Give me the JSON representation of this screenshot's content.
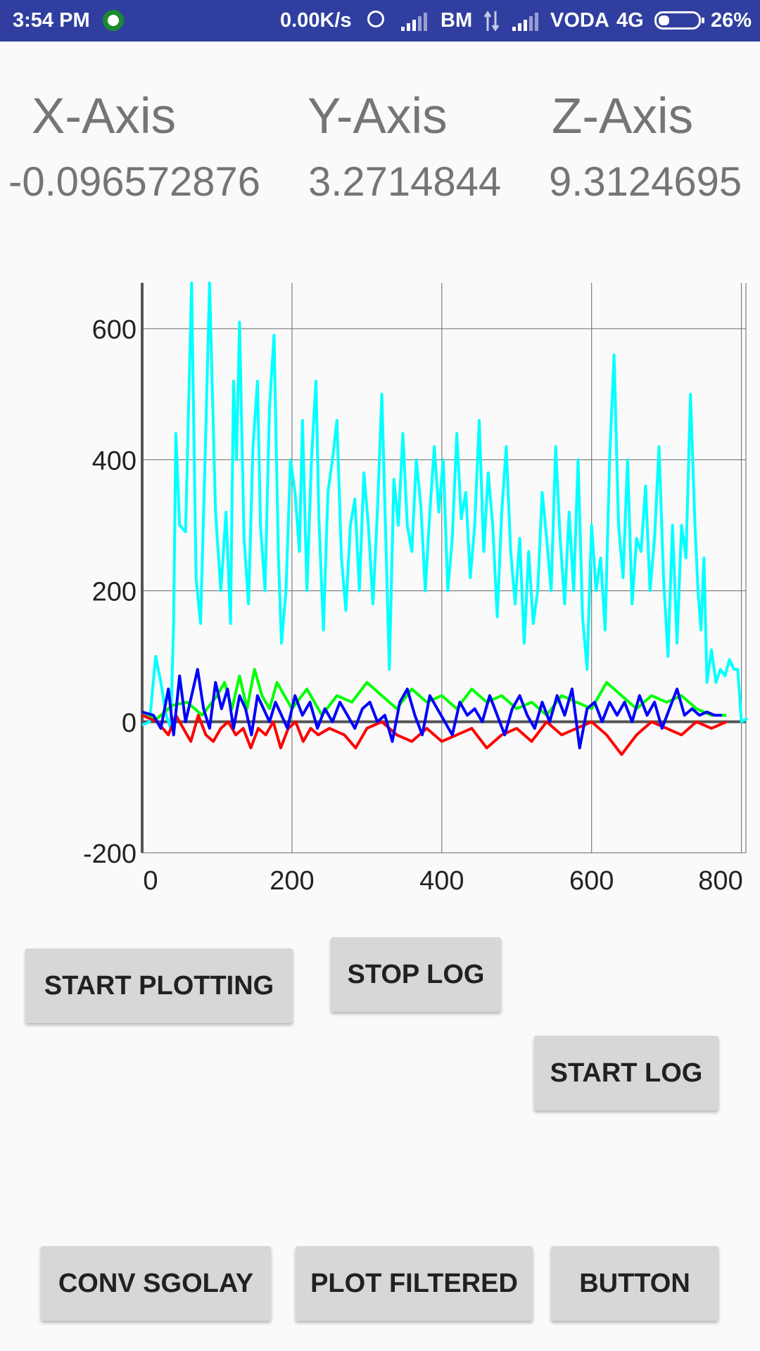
{
  "status_bar": {
    "time": "3:54 PM",
    "speed": "0.00K/s",
    "carrier1": "BM",
    "carrier2": "VODA",
    "network": "4G",
    "battery": "26%",
    "battery_level": 0.26,
    "icons": [
      "whatsapp-icon",
      "alarm-icon",
      "signal-icon",
      "data-arrows-icon",
      "signal-icon",
      "battery-icon"
    ]
  },
  "readings": {
    "x_title": "X-Axis",
    "y_title": "Y-Axis",
    "z_title": "Z-Axis",
    "x_value": "-0.096572876",
    "y_value": "3.2714844",
    "z_value": "9.3124695"
  },
  "chart_data": {
    "type": "line",
    "title": "",
    "xlabel": "",
    "ylabel": "",
    "xlim": [
      0,
      800
    ],
    "ylim": [
      -200,
      670
    ],
    "x_ticks": [
      "0",
      "200",
      "400",
      "600",
      "800"
    ],
    "y_ticks": [
      "-200",
      "0",
      "200",
      "400",
      "600"
    ],
    "grid": true,
    "colors": {
      "cyan": "#00FFFF",
      "green": "#00FF00",
      "red": "#FF0000",
      "blue": "#0000FF",
      "grid": "#666666",
      "axis": "#555555"
    },
    "series": [
      {
        "color": "#00FFFF",
        "points": [
          [
            0,
            -5
          ],
          [
            10,
            0
          ],
          [
            18,
            100
          ],
          [
            25,
            60
          ],
          [
            32,
            10
          ],
          [
            38,
            -10
          ],
          [
            42,
            150
          ],
          [
            45,
            440
          ],
          [
            50,
            300
          ],
          [
            58,
            290
          ],
          [
            66,
            670
          ],
          [
            72,
            220
          ],
          [
            78,
            150
          ],
          [
            84,
            400
          ],
          [
            90,
            670
          ],
          [
            98,
            320
          ],
          [
            105,
            200
          ],
          [
            112,
            320
          ],
          [
            118,
            150
          ],
          [
            122,
            520
          ],
          [
            126,
            400
          ],
          [
            130,
            610
          ],
          [
            136,
            280
          ],
          [
            142,
            180
          ],
          [
            148,
            420
          ],
          [
            154,
            520
          ],
          [
            158,
            300
          ],
          [
            164,
            200
          ],
          [
            170,
            480
          ],
          [
            176,
            590
          ],
          [
            182,
            250
          ],
          [
            186,
            120
          ],
          [
            192,
            200
          ],
          [
            198,
            400
          ],
          [
            204,
            350
          ],
          [
            210,
            260
          ],
          [
            214,
            460
          ],
          [
            220,
            200
          ],
          [
            226,
            400
          ],
          [
            232,
            520
          ],
          [
            236,
            310
          ],
          [
            242,
            140
          ],
          [
            248,
            350
          ],
          [
            254,
            400
          ],
          [
            260,
            460
          ],
          [
            266,
            250
          ],
          [
            272,
            170
          ],
          [
            278,
            300
          ],
          [
            284,
            340
          ],
          [
            290,
            200
          ],
          [
            296,
            380
          ],
          [
            302,
            300
          ],
          [
            308,
            180
          ],
          [
            314,
            320
          ],
          [
            320,
            500
          ],
          [
            326,
            250
          ],
          [
            330,
            80
          ],
          [
            336,
            370
          ],
          [
            342,
            300
          ],
          [
            348,
            440
          ],
          [
            354,
            300
          ],
          [
            360,
            260
          ],
          [
            366,
            400
          ],
          [
            372,
            330
          ],
          [
            378,
            200
          ],
          [
            384,
            320
          ],
          [
            390,
            420
          ],
          [
            396,
            320
          ],
          [
            402,
            400
          ],
          [
            408,
            200
          ],
          [
            414,
            280
          ],
          [
            420,
            440
          ],
          [
            426,
            310
          ],
          [
            432,
            350
          ],
          [
            438,
            220
          ],
          [
            444,
            300
          ],
          [
            450,
            460
          ],
          [
            456,
            260
          ],
          [
            462,
            380
          ],
          [
            468,
            300
          ],
          [
            474,
            160
          ],
          [
            480,
            320
          ],
          [
            486,
            420
          ],
          [
            492,
            260
          ],
          [
            498,
            180
          ],
          [
            504,
            280
          ],
          [
            510,
            120
          ],
          [
            516,
            260
          ],
          [
            522,
            150
          ],
          [
            528,
            200
          ],
          [
            534,
            350
          ],
          [
            540,
            280
          ],
          [
            546,
            200
          ],
          [
            552,
            420
          ],
          [
            558,
            280
          ],
          [
            564,
            180
          ],
          [
            570,
            320
          ],
          [
            576,
            200
          ],
          [
            582,
            400
          ],
          [
            588,
            160
          ],
          [
            594,
            80
          ],
          [
            600,
            300
          ],
          [
            606,
            200
          ],
          [
            612,
            250
          ],
          [
            618,
            140
          ],
          [
            624,
            400
          ],
          [
            630,
            560
          ],
          [
            636,
            300
          ],
          [
            642,
            220
          ],
          [
            648,
            400
          ],
          [
            654,
            180
          ],
          [
            660,
            280
          ],
          [
            666,
            260
          ],
          [
            672,
            360
          ],
          [
            678,
            200
          ],
          [
            684,
            280
          ],
          [
            690,
            420
          ],
          [
            696,
            220
          ],
          [
            702,
            100
          ],
          [
            708,
            300
          ],
          [
            714,
            120
          ],
          [
            720,
            300
          ],
          [
            726,
            250
          ],
          [
            732,
            500
          ],
          [
            738,
            300
          ],
          [
            742,
            200
          ],
          [
            746,
            140
          ],
          [
            750,
            250
          ],
          [
            754,
            60
          ],
          [
            760,
            110
          ],
          [
            766,
            60
          ],
          [
            772,
            80
          ],
          [
            778,
            70
          ],
          [
            784,
            95
          ],
          [
            790,
            80
          ],
          [
            795,
            80
          ],
          [
            800,
            0
          ],
          [
            808,
            5
          ]
        ]
      },
      {
        "color": "#00FF00",
        "points": [
          [
            0,
            10
          ],
          [
            20,
            5
          ],
          [
            40,
            25
          ],
          [
            60,
            30
          ],
          [
            80,
            10
          ],
          [
            100,
            40
          ],
          [
            110,
            60
          ],
          [
            120,
            20
          ],
          [
            130,
            70
          ],
          [
            140,
            20
          ],
          [
            150,
            80
          ],
          [
            160,
            40
          ],
          [
            170,
            20
          ],
          [
            180,
            60
          ],
          [
            190,
            40
          ],
          [
            200,
            20
          ],
          [
            220,
            50
          ],
          [
            240,
            10
          ],
          [
            260,
            40
          ],
          [
            280,
            30
          ],
          [
            300,
            60
          ],
          [
            320,
            40
          ],
          [
            340,
            20
          ],
          [
            360,
            50
          ],
          [
            380,
            30
          ],
          [
            400,
            40
          ],
          [
            420,
            20
          ],
          [
            440,
            50
          ],
          [
            460,
            30
          ],
          [
            480,
            40
          ],
          [
            500,
            20
          ],
          [
            520,
            30
          ],
          [
            540,
            10
          ],
          [
            560,
            40
          ],
          [
            580,
            30
          ],
          [
            600,
            20
          ],
          [
            620,
            60
          ],
          [
            640,
            40
          ],
          [
            660,
            20
          ],
          [
            680,
            40
          ],
          [
            700,
            30
          ],
          [
            720,
            40
          ],
          [
            740,
            20
          ],
          [
            760,
            10
          ],
          [
            780,
            10
          ]
        ]
      },
      {
        "color": "#FF0000",
        "points": [
          [
            0,
            10
          ],
          [
            20,
            0
          ],
          [
            35,
            -20
          ],
          [
            45,
            10
          ],
          [
            55,
            -10
          ],
          [
            65,
            -30
          ],
          [
            75,
            10
          ],
          [
            85,
            -20
          ],
          [
            95,
            -30
          ],
          [
            105,
            -10
          ],
          [
            115,
            0
          ],
          [
            125,
            -20
          ],
          [
            135,
            -10
          ],
          [
            145,
            -40
          ],
          [
            155,
            -10
          ],
          [
            165,
            -20
          ],
          [
            175,
            0
          ],
          [
            185,
            -40
          ],
          [
            195,
            -10
          ],
          [
            205,
            0
          ],
          [
            215,
            -30
          ],
          [
            225,
            -10
          ],
          [
            235,
            -20
          ],
          [
            250,
            -10
          ],
          [
            270,
            -20
          ],
          [
            285,
            -40
          ],
          [
            300,
            -10
          ],
          [
            320,
            0
          ],
          [
            340,
            -20
          ],
          [
            360,
            -30
          ],
          [
            380,
            -10
          ],
          [
            400,
            -30
          ],
          [
            420,
            -20
          ],
          [
            440,
            -10
          ],
          [
            460,
            -40
          ],
          [
            480,
            -20
          ],
          [
            500,
            -10
          ],
          [
            520,
            -30
          ],
          [
            540,
            0
          ],
          [
            560,
            -20
          ],
          [
            580,
            -10
          ],
          [
            600,
            0
          ],
          [
            620,
            -20
          ],
          [
            640,
            -50
          ],
          [
            660,
            -20
          ],
          [
            680,
            0
          ],
          [
            700,
            -10
          ],
          [
            720,
            -20
          ],
          [
            740,
            0
          ],
          [
            760,
            -10
          ],
          [
            780,
            0
          ]
        ]
      },
      {
        "color": "#0000FF",
        "points": [
          [
            0,
            15
          ],
          [
            15,
            10
          ],
          [
            25,
            -10
          ],
          [
            35,
            50
          ],
          [
            42,
            -20
          ],
          [
            50,
            70
          ],
          [
            58,
            0
          ],
          [
            66,
            40
          ],
          [
            74,
            80
          ],
          [
            82,
            20
          ],
          [
            90,
            -10
          ],
          [
            98,
            60
          ],
          [
            106,
            20
          ],
          [
            114,
            50
          ],
          [
            122,
            -10
          ],
          [
            130,
            40
          ],
          [
            138,
            20
          ],
          [
            146,
            -20
          ],
          [
            154,
            40
          ],
          [
            162,
            20
          ],
          [
            170,
            0
          ],
          [
            178,
            30
          ],
          [
            186,
            10
          ],
          [
            194,
            -10
          ],
          [
            204,
            40
          ],
          [
            214,
            10
          ],
          [
            224,
            30
          ],
          [
            234,
            -10
          ],
          [
            244,
            20
          ],
          [
            254,
            0
          ],
          [
            264,
            30
          ],
          [
            274,
            10
          ],
          [
            284,
            -10
          ],
          [
            294,
            20
          ],
          [
            304,
            30
          ],
          [
            314,
            0
          ],
          [
            324,
            10
          ],
          [
            334,
            -30
          ],
          [
            344,
            30
          ],
          [
            354,
            50
          ],
          [
            364,
            10
          ],
          [
            374,
            -20
          ],
          [
            384,
            40
          ],
          [
            394,
            20
          ],
          [
            404,
            0
          ],
          [
            414,
            -20
          ],
          [
            424,
            30
          ],
          [
            434,
            10
          ],
          [
            444,
            20
          ],
          [
            454,
            0
          ],
          [
            464,
            40
          ],
          [
            474,
            10
          ],
          [
            484,
            -20
          ],
          [
            494,
            20
          ],
          [
            504,
            40
          ],
          [
            514,
            10
          ],
          [
            524,
            -10
          ],
          [
            534,
            30
          ],
          [
            544,
            0
          ],
          [
            554,
            40
          ],
          [
            564,
            10
          ],
          [
            574,
            50
          ],
          [
            584,
            -40
          ],
          [
            594,
            20
          ],
          [
            604,
            30
          ],
          [
            614,
            0
          ],
          [
            624,
            30
          ],
          [
            634,
            10
          ],
          [
            644,
            30
          ],
          [
            654,
            0
          ],
          [
            664,
            40
          ],
          [
            674,
            10
          ],
          [
            684,
            30
          ],
          [
            694,
            -10
          ],
          [
            704,
            20
          ],
          [
            714,
            50
          ],
          [
            724,
            10
          ],
          [
            734,
            20
          ],
          [
            744,
            10
          ],
          [
            754,
            15
          ],
          [
            764,
            10
          ],
          [
            774,
            10
          ]
        ]
      }
    ]
  },
  "buttons": {
    "start_plotting": "START PLOTTING",
    "stop_log": "STOP LOG",
    "start_log": "START LOG",
    "conv_sgolay": "CONV SGOLAY",
    "plot_filtered": "PLOT FILTERED",
    "button": "BUTTON"
  }
}
